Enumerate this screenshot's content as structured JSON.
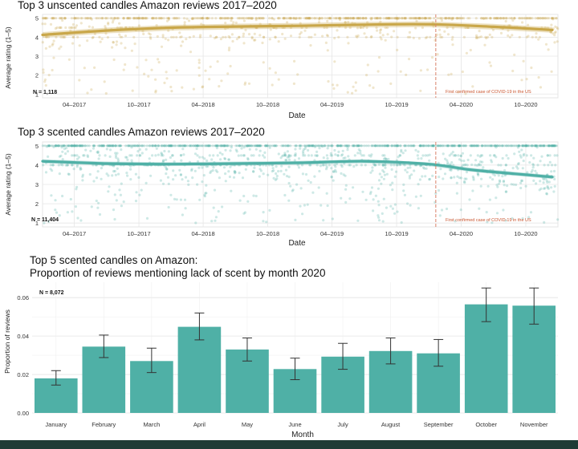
{
  "colors": {
    "unscented": "#c9a74a",
    "scented": "#4fb0a6",
    "covid_line": "#d9826a",
    "footer": "#1f3b35"
  },
  "covid_note": "First confirmed case of COVID-19 in the US",
  "chart_data": [
    {
      "type": "scatter",
      "title": "Top 3 unscented candles Amazon reviews 2017–2020",
      "xlabel": "Date",
      "ylabel": "Average rating (1–5)",
      "n_label": "N = 1,118",
      "x_ticks": [
        "04–2017",
        "10–2017",
        "04–2018",
        "10–2018",
        "04–2019",
        "10–2019",
        "04–2020",
        "10–2020"
      ],
      "y_ticks": [
        "1",
        "2",
        "3",
        "4",
        "5"
      ],
      "xlim": [
        "2017-01-01",
        "2020-12-31"
      ],
      "ylim": [
        0.8,
        5.2
      ],
      "covid_date": "2020-01-20",
      "trend": {
        "x": [
          "2017-01-01",
          "2017-07-01",
          "2018-01-01",
          "2018-07-01",
          "2019-01-01",
          "2019-07-01",
          "2020-01-01",
          "2020-07-01",
          "2020-12-15"
        ],
        "y": [
          4.12,
          4.35,
          4.5,
          4.56,
          4.6,
          4.66,
          4.68,
          4.55,
          4.38
        ],
        "band": 0.15
      }
    },
    {
      "type": "scatter",
      "title": "Top 3 scented candles Amazon reviews 2017–2020",
      "xlabel": "Date",
      "ylabel": "Average rating (1–5)",
      "n_label": "N = 11,404",
      "x_ticks": [
        "04–2017",
        "10–2017",
        "04–2018",
        "10–2018",
        "04–2019",
        "10–2019",
        "04–2020",
        "10–2020"
      ],
      "y_ticks": [
        "1",
        "2",
        "3",
        "4",
        "5"
      ],
      "xlim": [
        "2017-01-01",
        "2020-12-31"
      ],
      "ylim": [
        0.8,
        5.2
      ],
      "covid_date": "2020-01-20",
      "trend": {
        "x": [
          "2017-01-01",
          "2017-07-01",
          "2018-01-01",
          "2018-07-01",
          "2019-01-01",
          "2019-07-01",
          "2020-01-01",
          "2020-05-01",
          "2020-09-01",
          "2020-12-15"
        ],
        "y": [
          4.2,
          4.08,
          4.05,
          4.08,
          4.12,
          4.2,
          4.05,
          3.75,
          3.55,
          3.38
        ],
        "band": 0.1
      }
    },
    {
      "type": "bar",
      "title": "Top 5 scented candles on Amazon:",
      "subtitle": "Proportion of reviews mentioning lack of scent by month 2020",
      "xlabel": "Month",
      "ylabel": "Proportion of reviews",
      "n_label": "N = 8,072",
      "categories": [
        "January",
        "February",
        "March",
        "April",
        "May",
        "June",
        "July",
        "August",
        "September",
        "October",
        "November"
      ],
      "values": [
        0.018,
        0.0345,
        0.027,
        0.0448,
        0.033,
        0.0228,
        0.0293,
        0.0322,
        0.031,
        0.0565,
        0.0558
      ],
      "err_low": [
        0.0145,
        0.0288,
        0.021,
        0.038,
        0.027,
        0.0173,
        0.0227,
        0.0255,
        0.0243,
        0.0475,
        0.0462
      ],
      "err_high": [
        0.022,
        0.0405,
        0.0337,
        0.052,
        0.039,
        0.0285,
        0.0362,
        0.039,
        0.0382,
        0.065,
        0.065
      ],
      "y_ticks": [
        "0.00",
        "0.02",
        "0.04",
        "0.06"
      ],
      "ylim": [
        0,
        0.068
      ],
      "grid": true
    }
  ]
}
